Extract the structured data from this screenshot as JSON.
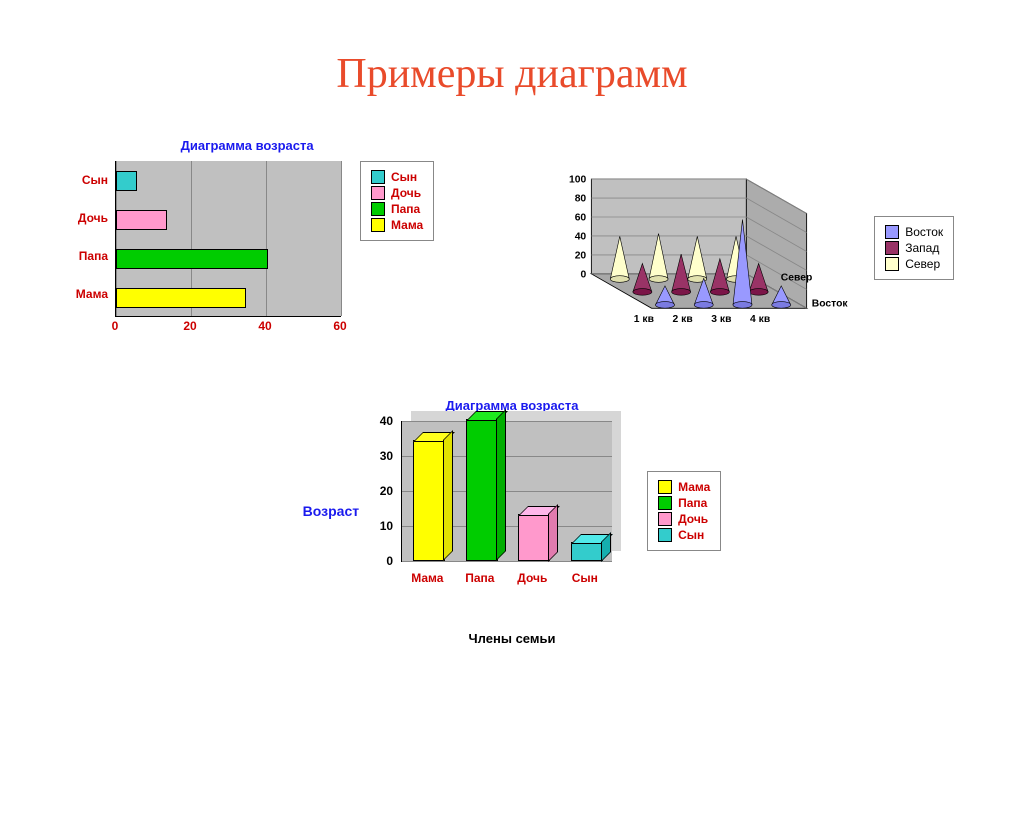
{
  "page_title": "Примеры диаграмм",
  "hbar": {
    "title": "Диаграмма возраста",
    "categories": [
      "Сын",
      "Дочь",
      "Папа",
      "Мама"
    ],
    "values": [
      5,
      13,
      40,
      34
    ],
    "bar_colors": [
      "#33cccc",
      "#ff99cc",
      "#00cc00",
      "#ffff00"
    ],
    "xlim": [
      0,
      60
    ],
    "xtick_step": 20,
    "xticks": [
      "0",
      "20",
      "40",
      "60"
    ],
    "plot_bg": "#c0c0c0",
    "ylabel_color": "#cc0000",
    "xlabel_color": "#cc0000",
    "legend": {
      "items": [
        "Сын",
        "Дочь",
        "Папа",
        "Мама"
      ],
      "colors": [
        "#33cccc",
        "#ff99cc",
        "#00cc00",
        "#ffff00"
      ],
      "label_color": "#cc0000"
    }
  },
  "cone": {
    "type": "3d-cone",
    "x_categories": [
      "1 кв",
      "2 кв",
      "3 кв",
      "4 кв"
    ],
    "series": [
      "Восток",
      "Запад",
      "Север"
    ],
    "series_colors": [
      "#9999ff",
      "#993366",
      "#ffffcc"
    ],
    "values": {
      "Восток": [
        20,
        28,
        90,
        20
      ],
      "Запад": [
        30,
        40,
        35,
        30
      ],
      "Север": [
        45,
        48,
        45,
        45
      ]
    },
    "ylim": [
      0,
      100
    ],
    "ytick_step": 20,
    "yticks": [
      "0",
      "20",
      "40",
      "60",
      "80",
      "100"
    ],
    "depth_labels": [
      "Север",
      "Восток"
    ],
    "legend": {
      "items": [
        "Восток",
        "Запад",
        "Север"
      ],
      "colors": [
        "#9999ff",
        "#993366",
        "#ffffcc"
      ]
    },
    "grid_color": "#888888",
    "wall_color": "#c0c0c0",
    "floor_color": "#a8a8a8"
  },
  "vbar": {
    "title": "Диаграмма возраста",
    "ylabel": "Возраст",
    "xlabel": "Члены семьи",
    "categories": [
      "Мама",
      "Папа",
      "Дочь",
      "Сын"
    ],
    "values": [
      34,
      40,
      13,
      5
    ],
    "bar_colors": [
      "#ffff00",
      "#00cc00",
      "#ff99cc",
      "#33cccc"
    ],
    "ylim": [
      0,
      40
    ],
    "ytick_step": 10,
    "yticks": [
      "0",
      "10",
      "20",
      "30",
      "40"
    ],
    "plot_bg": "#c0c0c0",
    "xlabel_color": "#cc0000",
    "legend": {
      "items": [
        "Мама",
        "Папа",
        "Дочь",
        "Сын"
      ],
      "colors": [
        "#ffff00",
        "#00cc00",
        "#ff99cc",
        "#33cccc"
      ],
      "label_color": "#cc0000"
    }
  }
}
